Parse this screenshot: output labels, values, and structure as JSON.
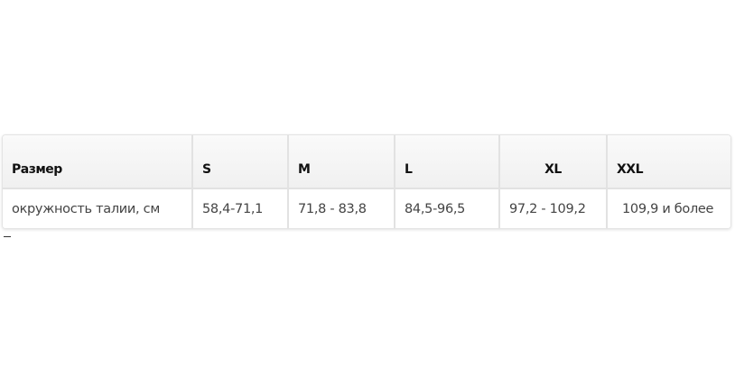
{
  "table": {
    "headers": [
      "Размер",
      "S",
      "M",
      "L",
      "XL",
      "XXL"
    ],
    "rows": [
      [
        "окружность талии, см",
        "58,4-71,1",
        "71,8 - 83,8",
        "84,5-96,5",
        "97,2 - 109,2",
        "109,9 и более"
      ]
    ]
  }
}
